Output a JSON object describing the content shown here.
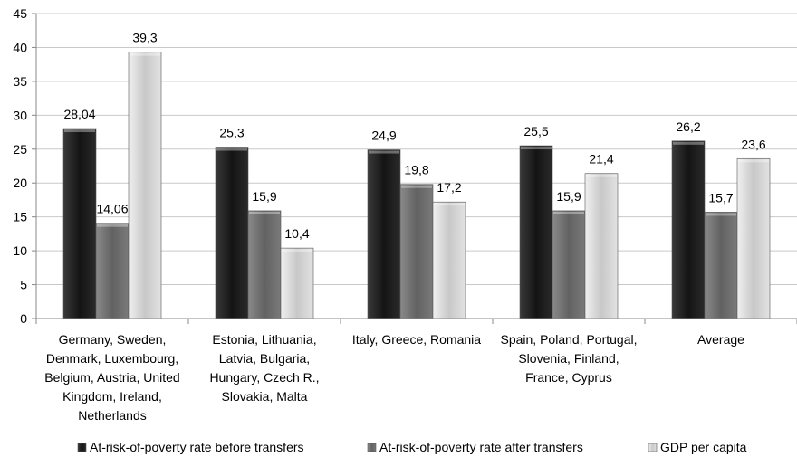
{
  "chart_data": {
    "type": "bar",
    "title": "",
    "xlabel": "",
    "ylabel": "",
    "ylim": [
      0,
      45
    ],
    "yticks": [
      "0",
      "5",
      "10",
      "15",
      "20",
      "25",
      "30",
      "35",
      "40",
      "45"
    ],
    "grid": true,
    "legend_position": "bottom",
    "categories": [
      [
        "Germany, Sweden,",
        "Denmark, Luxembourg,",
        "Belgium, Austria, United",
        "Kingdom, Ireland,",
        "Netherlands"
      ],
      [
        "Estonia, Lithuania,",
        "Latvia, Bulgaria,",
        "Hungary, Czech R.,",
        "Slovakia, Malta"
      ],
      [
        "Italy, Greece, Romania"
      ],
      [
        "Spain, Poland, Portugal,",
        "Slovenia, Finland,",
        "France, Cyprus"
      ],
      [
        "Average"
      ]
    ],
    "series": [
      {
        "name": "At-risk-of-poverty rate before transfers",
        "color": "#1a1a1a",
        "values": [
          28.04,
          25.3,
          24.9,
          25.5,
          26.2
        ],
        "labels": [
          "28,04",
          "25,3",
          "24,9",
          "25,5",
          "26,2"
        ]
      },
      {
        "name": "At-risk-of-poverty rate after transfers",
        "color": "#6e6e6e",
        "values": [
          14.06,
          15.9,
          19.8,
          15.9,
          15.7
        ],
        "labels": [
          "14,06",
          "15,9",
          "19,8",
          "15,9",
          "15,7"
        ]
      },
      {
        "name": "GDP per capita",
        "color": "#d4d4d4",
        "values": [
          39.3,
          10.4,
          17.2,
          21.4,
          23.6
        ],
        "labels": [
          "39,3",
          "10,4",
          "17,2",
          "21,4",
          "23,6"
        ]
      }
    ]
  }
}
